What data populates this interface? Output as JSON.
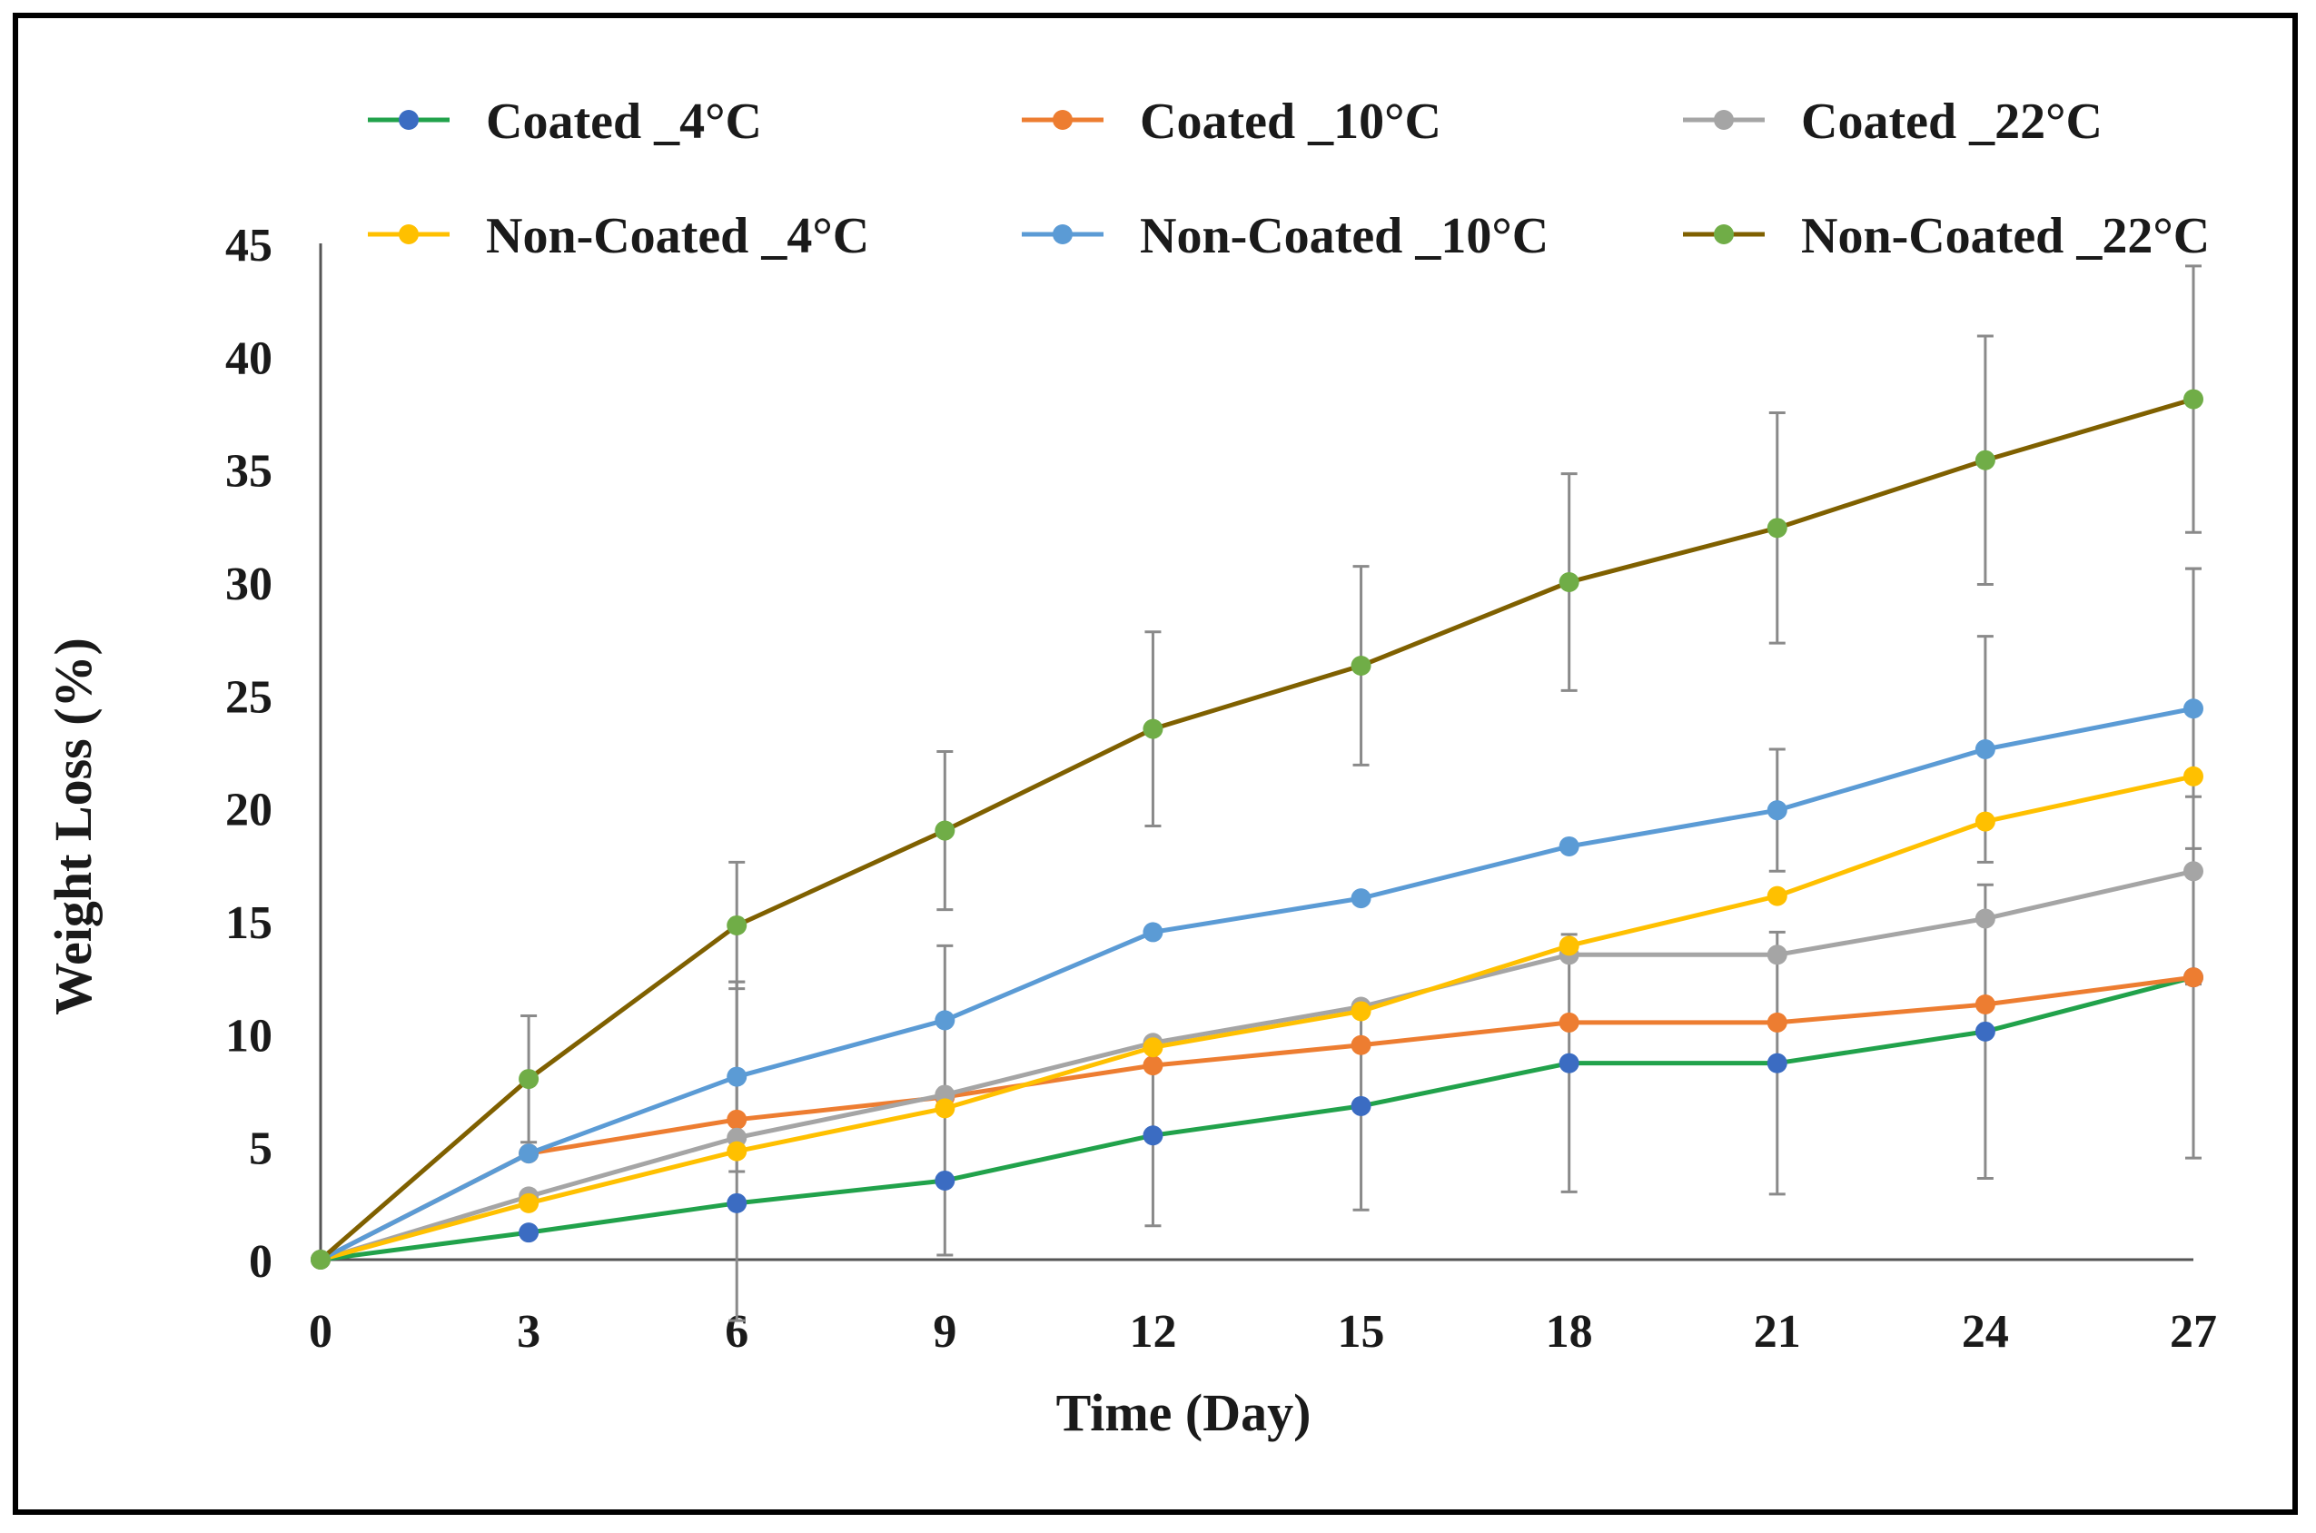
{
  "chart_data": {
    "type": "line",
    "title": "",
    "xlabel": "Time (Day)",
    "ylabel": "Weight Loss (%)",
    "x": [
      0,
      3,
      6,
      9,
      12,
      15,
      18,
      21,
      24,
      27
    ],
    "xticks": [
      "0",
      "3",
      "6",
      "9",
      "12",
      "15",
      "18",
      "21",
      "24",
      "27"
    ],
    "yticks": [
      "0",
      "5",
      "10",
      "15",
      "20",
      "25",
      "30",
      "35",
      "40",
      "45"
    ],
    "xlim": [
      0,
      27
    ],
    "ylim": [
      0,
      45
    ],
    "grid": false,
    "legend_position": "top",
    "series": [
      {
        "name": "Coated _4°C",
        "color": "#21a24b",
        "marker_color": "#3b6cc2",
        "values": [
          0,
          1.2,
          2.5,
          3.5,
          5.5,
          6.8,
          8.7,
          8.7,
          10.1,
          12.5
        ],
        "errors": [
          0,
          0,
          0,
          3.3,
          4.0,
          4.6,
          5.7,
          5.8,
          6.5,
          8.0
        ]
      },
      {
        "name": "Coated _10°C",
        "color": "#ed7d31",
        "marker_color": "#ed7d31",
        "values": [
          0,
          4.7,
          6.2,
          7.2,
          8.6,
          9.5,
          10.5,
          10.5,
          11.3,
          12.5
        ],
        "errors": [
          0,
          0,
          0,
          0,
          0,
          0,
          0,
          0,
          0,
          0
        ]
      },
      {
        "name": "Coated _22°C",
        "color": "#a5a5a5",
        "marker_color": "#a5a5a5",
        "values": [
          0,
          2.8,
          5.4,
          7.3,
          9.6,
          11.2,
          13.5,
          13.5,
          15.1,
          17.2
        ],
        "errors": [
          0,
          0,
          0,
          0,
          0,
          0,
          0,
          0,
          0,
          0
        ]
      },
      {
        "name": "Non-Coated _4°C",
        "color": "#ffc000",
        "marker_color": "#ffc000",
        "values": [
          0,
          2.5,
          4.8,
          6.7,
          9.4,
          11.0,
          13.9,
          16.1,
          19.4,
          21.4
        ],
        "errors": [
          0,
          0,
          7.5,
          0,
          0,
          0,
          0,
          0,
          0,
          9.2
        ]
      },
      {
        "name": "Non-Coated _10°C",
        "color": "#5b9bd5",
        "marker_color": "#5b9bd5",
        "values": [
          0,
          4.7,
          8.1,
          10.6,
          14.5,
          16.0,
          18.3,
          19.9,
          22.6,
          24.4
        ],
        "errors": [
          0,
          0,
          4.2,
          3.3,
          0,
          0,
          0,
          2.7,
          5.0,
          6.2
        ]
      },
      {
        "name": "Non-Coated _22°C",
        "color": "#7f6000",
        "marker_color": "#70ad47",
        "values": [
          0,
          8.0,
          14.8,
          19.0,
          23.5,
          26.3,
          30.0,
          32.4,
          35.4,
          38.1
        ],
        "errors": [
          0,
          2.8,
          2.8,
          3.5,
          4.3,
          4.4,
          4.8,
          5.1,
          5.5,
          5.9
        ]
      }
    ]
  }
}
